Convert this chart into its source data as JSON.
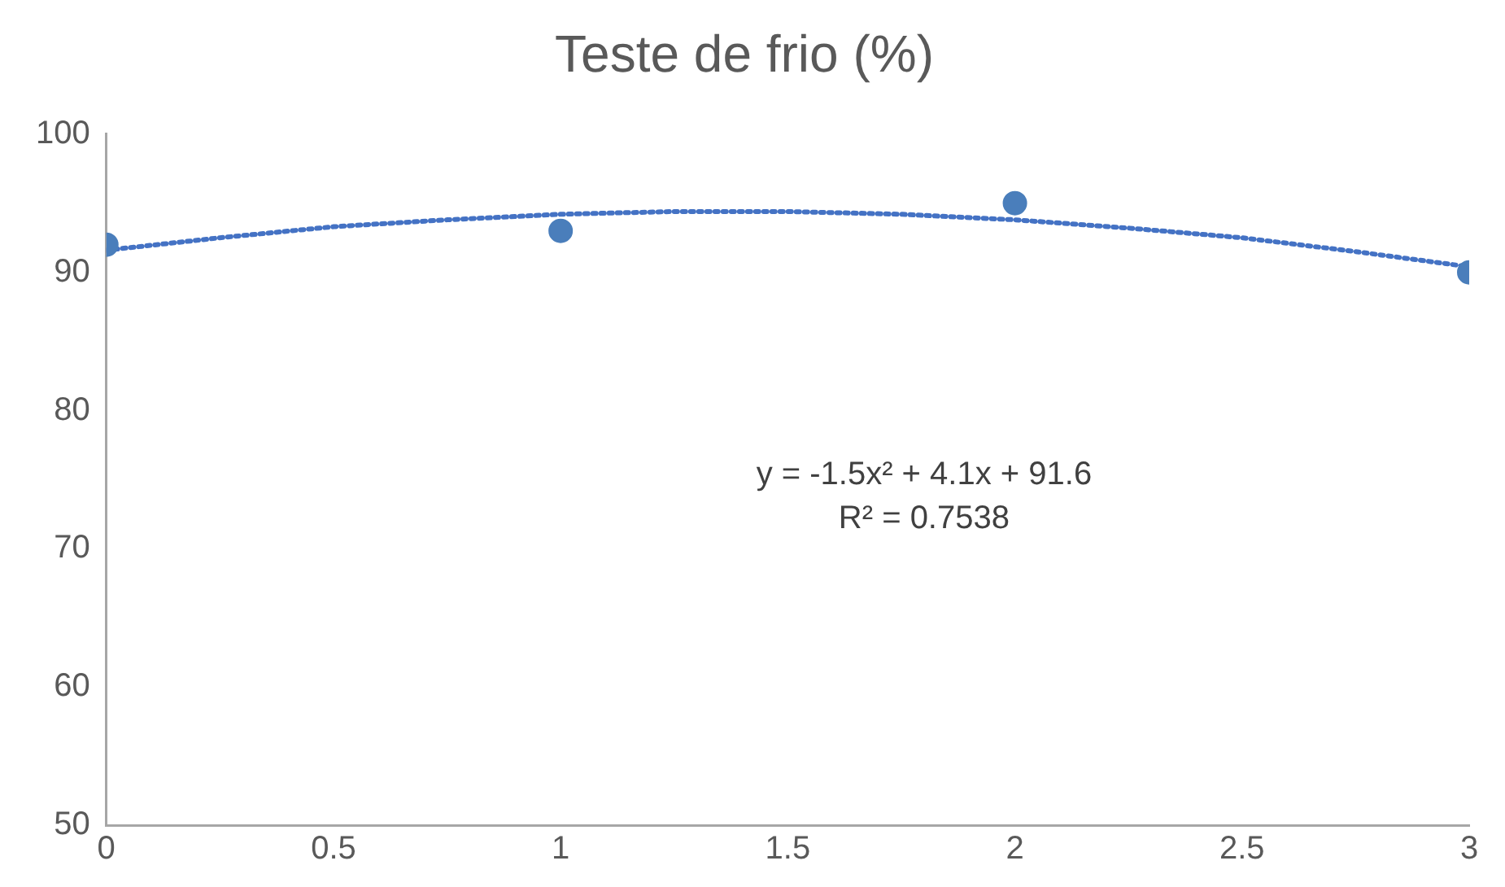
{
  "chart_data": {
    "type": "scatter",
    "title": "Teste de frio (%)",
    "x": [
      0,
      1,
      2,
      3
    ],
    "xlim": [
      0,
      3
    ],
    "xticks": [
      0,
      0.5,
      1,
      1.5,
      2,
      2.5,
      3
    ],
    "ylim": [
      50,
      100
    ],
    "yticks": [
      50,
      60,
      70,
      80,
      90,
      100
    ],
    "grid": false,
    "marker": "circle",
    "series": [
      {
        "type": "scatter",
        "color": "#4a7ebb",
        "values": [
          92,
          93,
          95,
          90
        ]
      },
      {
        "type": "line",
        "color": "#4472c4",
        "marker": "none",
        "line_style": "dotted",
        "x": [
          0,
          0.25,
          0.5,
          0.75,
          1,
          1.25,
          1.5,
          1.75,
          2,
          2.25,
          2.5,
          2.75,
          3
        ],
        "values": [
          91.6,
          92.5,
          93.3,
          93.8,
          94.2,
          94.4,
          94.4,
          94.2,
          93.8,
          93.2,
          92.5,
          91.5,
          90.4
        ]
      }
    ],
    "annotations": [
      "y = -1.5x² + 4.1x + 91.6",
      "R² = 0.7538"
    ]
  }
}
